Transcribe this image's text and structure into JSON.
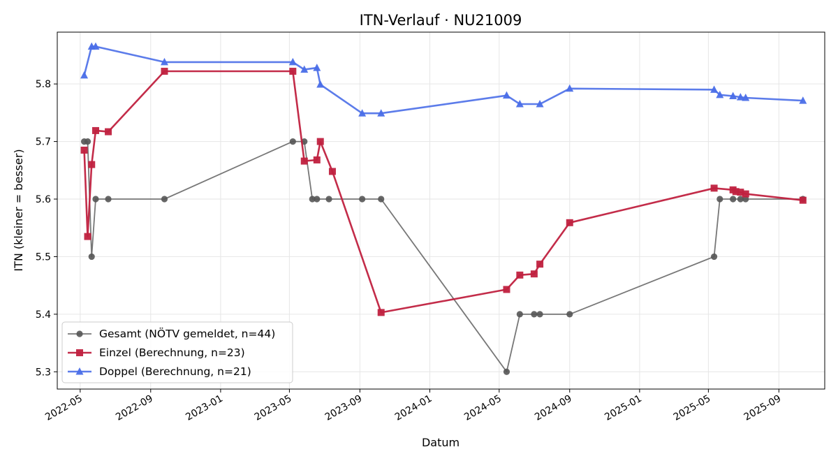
{
  "chart_data": {
    "type": "line",
    "title": "ITN-Verlauf · NU21009",
    "xlabel": "Datum",
    "ylabel": "ITN  (kleiner = besser)",
    "x_ticks": [
      "2022-05",
      "2022-09",
      "2023-01",
      "2023-05",
      "2023-09",
      "2024-01",
      "2024-05",
      "2024-09",
      "2025-01",
      "2025-05",
      "2025-09"
    ],
    "y_ticks": [
      "5.3",
      "5.4",
      "5.5",
      "5.6",
      "5.7",
      "5.8"
    ],
    "xlim": [
      "2022-03-22",
      "2025-11-20"
    ],
    "ylim": [
      5.27,
      5.89
    ],
    "grid": true,
    "legend_position": "lower-left",
    "series": [
      {
        "name": "Gesamt (NÖTV gemeldet, n=44)",
        "color": "#555555",
        "marker": "circle",
        "points": [
          [
            "2022-05-08",
            5.7
          ],
          [
            "2022-05-14",
            5.7
          ],
          [
            "2022-05-21",
            5.5
          ],
          [
            "2022-05-28",
            5.6
          ],
          [
            "2022-06-19",
            5.6
          ],
          [
            "2022-09-25",
            5.6
          ],
          [
            "2023-05-07",
            5.7
          ],
          [
            "2023-05-27",
            5.7
          ],
          [
            "2023-06-10",
            5.6
          ],
          [
            "2023-06-18",
            5.6
          ],
          [
            "2023-07-09",
            5.6
          ],
          [
            "2023-09-05",
            5.6
          ],
          [
            "2023-10-08",
            5.6
          ],
          [
            "2024-05-14",
            5.3
          ],
          [
            "2024-06-06",
            5.4
          ],
          [
            "2024-07-01",
            5.4
          ],
          [
            "2024-07-11",
            5.4
          ],
          [
            "2024-09-01",
            5.4
          ],
          [
            "2025-05-11",
            5.5
          ],
          [
            "2025-05-21",
            5.6
          ],
          [
            "2025-06-13",
            5.6
          ],
          [
            "2025-06-26",
            5.6
          ],
          [
            "2025-07-05",
            5.6
          ],
          [
            "2025-10-13",
            5.6
          ]
        ]
      },
      {
        "name": "Einzel (Berechnung, n=23)",
        "color": "#c0213f",
        "marker": "square",
        "points": [
          [
            "2022-05-08",
            5.685
          ],
          [
            "2022-05-14",
            5.535
          ],
          [
            "2022-05-21",
            5.66
          ],
          [
            "2022-05-28",
            5.719
          ],
          [
            "2022-06-19",
            5.717
          ],
          [
            "2022-09-25",
            5.822
          ],
          [
            "2023-05-07",
            5.822
          ],
          [
            "2023-05-27",
            5.666
          ],
          [
            "2023-06-18",
            5.668
          ],
          [
            "2023-06-24",
            5.7
          ],
          [
            "2023-07-15",
            5.648
          ],
          [
            "2023-10-08",
            5.403
          ],
          [
            "2024-05-14",
            5.443
          ],
          [
            "2024-06-06",
            5.468
          ],
          [
            "2024-07-01",
            5.47
          ],
          [
            "2024-07-11",
            5.487
          ],
          [
            "2024-09-01",
            5.559
          ],
          [
            "2025-05-11",
            5.619
          ],
          [
            "2025-06-13",
            5.616
          ],
          [
            "2025-06-18",
            5.613
          ],
          [
            "2025-06-26",
            5.612
          ],
          [
            "2025-07-05",
            5.609
          ],
          [
            "2025-10-13",
            5.598
          ]
        ]
      },
      {
        "name": "Doppel (Berechnung, n=21)",
        "color": "#4a6ee8",
        "marker": "triangle",
        "points": [
          [
            "2022-05-08",
            5.815
          ],
          [
            "2022-05-21",
            5.865
          ],
          [
            "2022-05-28",
            5.865
          ],
          [
            "2022-09-25",
            5.838
          ],
          [
            "2023-05-07",
            5.838
          ],
          [
            "2023-05-27",
            5.825
          ],
          [
            "2023-06-18",
            5.828
          ],
          [
            "2023-06-24",
            5.799
          ],
          [
            "2023-09-05",
            5.749
          ],
          [
            "2023-10-08",
            5.749
          ],
          [
            "2024-05-14",
            5.78
          ],
          [
            "2024-06-06",
            5.765
          ],
          [
            "2024-07-11",
            5.765
          ],
          [
            "2024-09-01",
            5.792
          ],
          [
            "2025-05-11",
            5.79
          ],
          [
            "2025-05-21",
            5.781
          ],
          [
            "2025-06-13",
            5.779
          ],
          [
            "2025-06-26",
            5.777
          ],
          [
            "2025-07-05",
            5.776
          ],
          [
            "2025-10-13",
            5.771
          ]
        ]
      }
    ]
  }
}
